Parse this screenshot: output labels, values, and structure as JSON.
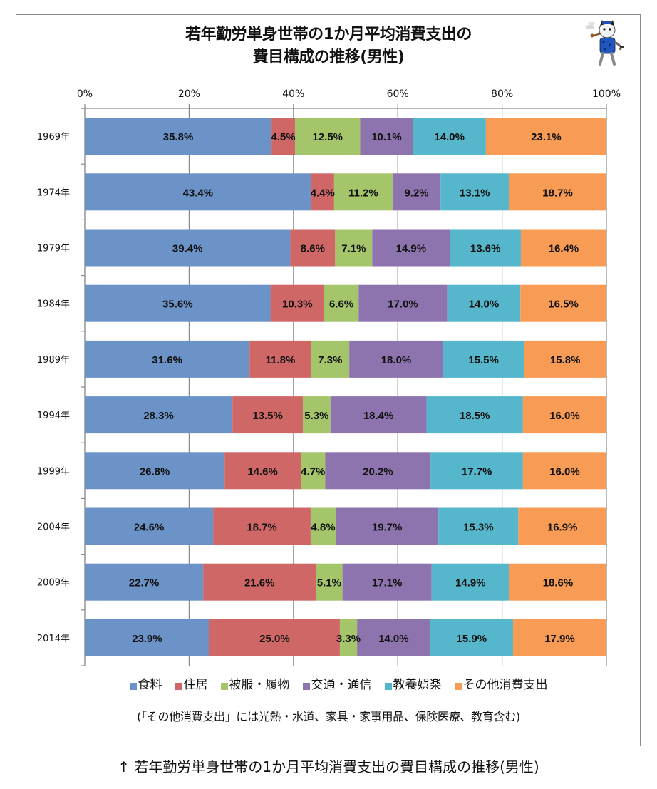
{
  "caption": "↑ 若年勤労単身世帯の1か月平均消費支出の費目構成の推移(男性)",
  "note": "(「その他消費支出」には光熱・水道、家具・家事用品、保険医療、教育含む)",
  "icons": {
    "mascot": "cat-mascot-icon"
  },
  "chart_data": {
    "type": "bar",
    "orientation": "horizontal",
    "stacked": "percent",
    "title_lines": [
      "若年勤労単身世帯の1か月平均消費支出の",
      "費目構成の推移(男性)"
    ],
    "categories": [
      "1969年",
      "1974年",
      "1979年",
      "1984年",
      "1989年",
      "1994年",
      "1999年",
      "2004年",
      "2009年",
      "2014年"
    ],
    "x_ticks": [
      "0%",
      "20%",
      "40%",
      "60%",
      "80%",
      "100%"
    ],
    "xlim": [
      0,
      100
    ],
    "grid": true,
    "legend_position": "bottom",
    "series": [
      {
        "name": "食料",
        "color": "#6b93c7",
        "values": [
          35.8,
          43.4,
          39.4,
          35.6,
          31.6,
          28.3,
          26.8,
          24.6,
          22.7,
          23.9
        ],
        "labels": [
          "35.8%",
          "43.4%",
          "39.4%",
          "35.6%",
          "31.6%",
          "28.3%",
          "26.8%",
          "24.6%",
          "22.7%",
          "23.9%"
        ]
      },
      {
        "name": "住居",
        "color": "#cf6766",
        "values": [
          4.5,
          4.4,
          8.6,
          10.3,
          11.8,
          13.5,
          14.6,
          18.7,
          21.6,
          25.0
        ],
        "labels": [
          "4.5%",
          "4.4%",
          "8.6%",
          "10.3%",
          "11.8%",
          "13.5%",
          "14.6%",
          "18.7%",
          "21.6%",
          "25.0%"
        ]
      },
      {
        "name": "被服・履物",
        "color": "#a5c56a",
        "values": [
          12.5,
          11.2,
          7.1,
          6.6,
          7.3,
          5.3,
          4.7,
          4.8,
          5.1,
          3.3
        ],
        "labels": [
          "12.5%",
          "11.2%",
          "7.1%",
          "6.6%",
          "7.3%",
          "5.3%",
          "4.7%",
          "4.8%",
          "5.1%",
          "3.3%"
        ]
      },
      {
        "name": "交通・通信",
        "color": "#8e74ae",
        "values": [
          10.1,
          9.2,
          14.9,
          17.0,
          18.0,
          18.4,
          20.2,
          19.7,
          17.1,
          14.0
        ],
        "labels": [
          "10.1%",
          "9.2%",
          "14.9%",
          "17.0%",
          "18.0%",
          "18.4%",
          "20.2%",
          "19.7%",
          "17.1%",
          "14.0%"
        ]
      },
      {
        "name": "教養娯楽",
        "color": "#56b6cc",
        "values": [
          14.0,
          13.1,
          13.6,
          14.0,
          15.5,
          18.5,
          17.7,
          15.3,
          14.9,
          15.9
        ],
        "labels": [
          "14.0%",
          "13.1%",
          "13.6%",
          "14.0%",
          "15.5%",
          "18.5%",
          "17.7%",
          "15.3%",
          "14.9%",
          "15.9%"
        ]
      },
      {
        "name": "その他消費支出",
        "color": "#f89c55",
        "values": [
          23.1,
          18.7,
          16.4,
          16.5,
          15.8,
          16.0,
          16.0,
          16.9,
          18.6,
          17.9
        ],
        "labels": [
          "23.1%",
          "18.7%",
          "16.4%",
          "16.5%",
          "15.8%",
          "16.0%",
          "16.0%",
          "16.9%",
          "18.6%",
          "17.9%"
        ]
      }
    ]
  }
}
